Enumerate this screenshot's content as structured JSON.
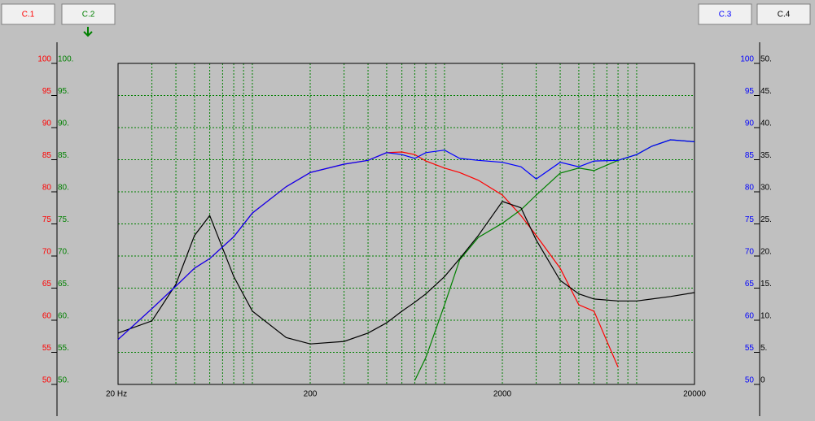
{
  "chart_data": {
    "type": "line",
    "xscale": "log",
    "xlim": [
      20,
      20000
    ],
    "ylim": [
      50,
      100
    ],
    "y2lim": [
      0,
      50
    ],
    "grid": true,
    "x": [
      20,
      30,
      40,
      50,
      60,
      80,
      100,
      150,
      200,
      300,
      400,
      500,
      600,
      700,
      800,
      1000,
      1200,
      1500,
      2000,
      2500,
      3000,
      4000,
      5000,
      6000,
      8000,
      10000,
      12000,
      15000,
      20000
    ],
    "xticks": [
      {
        "value": 20,
        "label": "20 Hz"
      },
      200,
      2000,
      20000
    ],
    "xminorticks": [
      30,
      40,
      50,
      60,
      70,
      80,
      90,
      100,
      300,
      400,
      500,
      600,
      700,
      800,
      900,
      1000,
      3000,
      4000,
      5000,
      6000,
      7000,
      8000,
      9000,
      10000
    ],
    "series": [
      {
        "name": "C.1",
        "color": "#ff0000",
        "axis": "y",
        "side": "left",
        "ticks": [
          100,
          95,
          90,
          85,
          80,
          75,
          70,
          65,
          60,
          55,
          50
        ],
        "values": [
          57.0,
          61.8,
          65.3,
          68.1,
          69.6,
          73.0,
          76.7,
          80.8,
          83.0,
          84.3,
          84.9,
          86.1,
          86.2,
          85.8,
          84.8,
          83.7,
          83.0,
          81.8,
          79.5,
          76.3,
          73.2,
          68.1,
          62.4,
          61.4,
          52.7,
          null,
          null,
          null,
          null
        ]
      },
      {
        "name": "C.2",
        "color": "#008000",
        "axis": "y",
        "side": "left",
        "ticks": [
          {
            "value": 100,
            "label": "100."
          },
          {
            "value": 95,
            "label": "95."
          },
          {
            "value": 90,
            "label": "90."
          },
          {
            "value": 85,
            "label": "85."
          },
          {
            "value": 80,
            "label": "80."
          },
          {
            "value": 75,
            "label": "75."
          },
          {
            "value": 70,
            "label": "70."
          },
          {
            "value": 65,
            "label": "65."
          },
          {
            "value": 60,
            "label": "60."
          },
          {
            "value": 55,
            "label": "55."
          },
          {
            "value": 50,
            "label": "50."
          }
        ],
        "values": [
          null,
          null,
          null,
          null,
          null,
          null,
          null,
          null,
          null,
          null,
          null,
          null,
          null,
          50.6,
          54.2,
          62.4,
          69.4,
          72.9,
          75.1,
          77.2,
          79.5,
          82.9,
          83.7,
          83.3,
          84.9,
          85.8,
          87.1,
          88.1,
          87.8
        ]
      },
      {
        "name": "C.3",
        "color": "#0000ff",
        "axis": "y",
        "side": "right",
        "ticks": [
          100,
          95,
          90,
          85,
          80,
          75,
          70,
          65,
          60,
          55,
          50
        ],
        "values": [
          57.0,
          61.8,
          65.3,
          68.1,
          69.6,
          73.0,
          76.7,
          80.8,
          83.0,
          84.3,
          84.9,
          86.1,
          85.8,
          85.2,
          86.1,
          86.5,
          85.2,
          84.9,
          84.6,
          83.9,
          82.0,
          84.6,
          83.9,
          84.8,
          84.9,
          85.8,
          87.1,
          88.1,
          87.8
        ]
      },
      {
        "name": "C.4",
        "color": "#000000",
        "axis": "y2",
        "side": "right",
        "ticks": [
          {
            "value": 50,
            "label": "50."
          },
          {
            "value": 45,
            "label": "45."
          },
          {
            "value": 40,
            "label": "40."
          },
          {
            "value": 35,
            "label": "35."
          },
          {
            "value": 30,
            "label": "30."
          },
          {
            "value": 25,
            "label": "25."
          },
          {
            "value": 20,
            "label": "20."
          },
          {
            "value": 15,
            "label": "15."
          },
          {
            "value": 10,
            "label": "10."
          },
          {
            "value": 5,
            "label": "5."
          },
          0
        ],
        "values": [
          8.0,
          9.9,
          15.6,
          23.2,
          26.3,
          16.8,
          11.4,
          7.3,
          6.3,
          6.7,
          8.0,
          9.6,
          11.4,
          12.8,
          14.1,
          16.8,
          19.6,
          23.2,
          28.5,
          27.5,
          22.5,
          16.2,
          14.1,
          13.3,
          13.0,
          13.0,
          13.3,
          13.7,
          14.3
        ]
      }
    ]
  }
}
